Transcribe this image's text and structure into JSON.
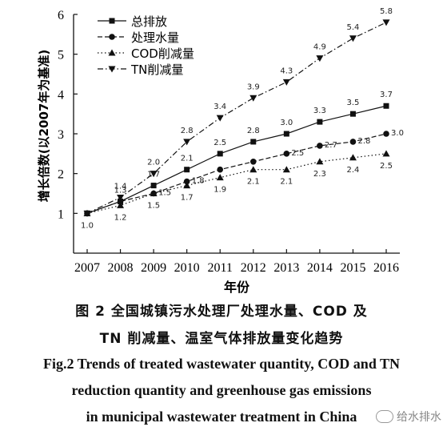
{
  "chart_data": {
    "type": "line",
    "xlabel": "年份",
    "ylabel": "增长倍数(以2007年为基准)",
    "x": [
      2007,
      2008,
      2009,
      2010,
      2011,
      2012,
      2013,
      2014,
      2015,
      2016
    ],
    "x_tick_labels": [
      "2007",
      "2008",
      "2009",
      "2010",
      "2011",
      "2012",
      "2013",
      "2014",
      "2015",
      "2016"
    ],
    "ylim": [
      0,
      6
    ],
    "y_ticks": [
      1,
      2,
      3,
      4,
      5,
      6
    ],
    "y_tick_labels": [
      "1",
      "2",
      "3",
      "4",
      "5",
      "6"
    ],
    "grid": false,
    "legend_position": "top-left",
    "series": [
      {
        "name": "总排放",
        "marker": "square",
        "line_style": "solid",
        "values": [
          1.0,
          1.3,
          1.7,
          2.1,
          2.5,
          2.8,
          3.0,
          3.3,
          3.5,
          3.7
        ],
        "labels": [
          "",
          "1.3",
          "1.7",
          "2.1",
          "2.5",
          "2.8",
          "3.0",
          "3.3",
          "3.5",
          "3.7"
        ]
      },
      {
        "name": "处理水量",
        "marker": "circle",
        "line_style": "dashed",
        "values": [
          1.0,
          1.3,
          1.5,
          1.8,
          2.1,
          2.3,
          2.5,
          2.7,
          2.8,
          3.0
        ],
        "labels": [
          "",
          "",
          "1.5",
          "1.8",
          "",
          "",
          "2.5",
          "2.7",
          "2.8",
          "3.0"
        ]
      },
      {
        "name": "COD削减量",
        "marker": "triangle-up",
        "line_style": "dotted",
        "values": [
          1.0,
          1.2,
          1.5,
          1.7,
          1.9,
          2.1,
          2.1,
          2.3,
          2.4,
          2.5
        ],
        "labels": [
          "1.0",
          "1.2",
          "1.5",
          "1.7",
          "1.9",
          "2.1",
          "2.1",
          "2.3",
          "2.4",
          "2.5"
        ]
      },
      {
        "name": "TN削减量",
        "marker": "triangle-down",
        "line_style": "dash-dot",
        "values": [
          1.0,
          1.4,
          2.0,
          2.8,
          3.4,
          3.9,
          4.3,
          4.9,
          5.4,
          5.8
        ],
        "labels": [
          "",
          "1.4",
          "2.0",
          "2.8",
          "3.4",
          "3.9",
          "4.3",
          "4.9",
          "5.4",
          "5.8"
        ]
      }
    ]
  },
  "captions": {
    "cn_line1": "图 2  全国城镇污水处理厂处理水量、COD 及",
    "cn_line2": "TN 削减量、温室气体排放量变化趋势",
    "en_line1": "Fig.2  Trends of treated wastewater quantity, COD and TN",
    "en_line2": "reduction quantity and greenhouse gas emissions",
    "en_line3": "in municipal wastewater treatment in China"
  },
  "watermark": {
    "text": "给水排水",
    "icon": "wechat-icon"
  }
}
